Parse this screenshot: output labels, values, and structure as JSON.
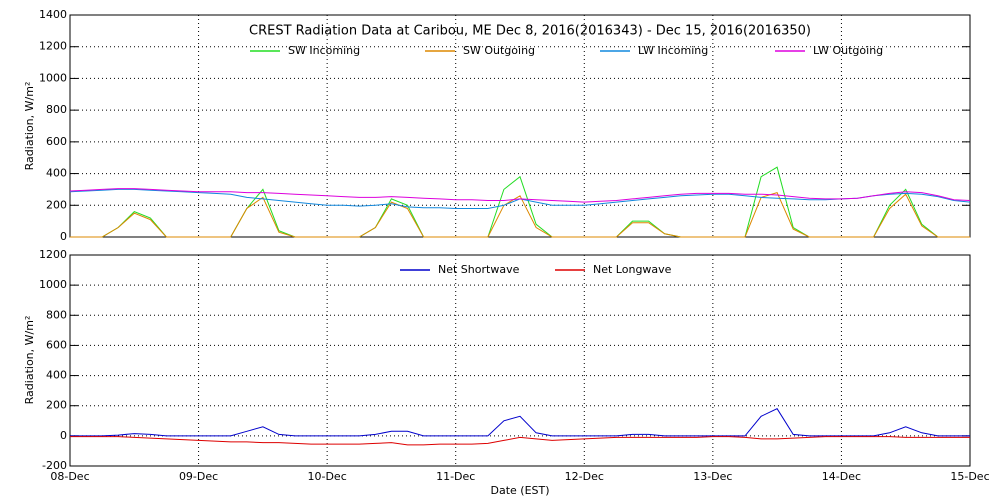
{
  "chart_data": [
    {
      "type": "line",
      "title": "CREST Radiation Data at Caribou, ME   Dec  8, 2016(2016343) - Dec 15, 2016(2016350)",
      "y_label": "Radiation, W/m²",
      "x": [
        0,
        0.125,
        0.25,
        0.375,
        0.5,
        0.625,
        0.75,
        0.875,
        1,
        1.125,
        1.25,
        1.375,
        1.5,
        1.625,
        1.75,
        1.875,
        2,
        2.125,
        2.25,
        2.375,
        2.5,
        2.625,
        2.75,
        2.875,
        3,
        3.125,
        3.25,
        3.375,
        3.5,
        3.625,
        3.75,
        3.875,
        4,
        4.125,
        4.25,
        4.375,
        4.5,
        4.625,
        4.75,
        4.875,
        5,
        5.125,
        5.25,
        5.375,
        5.5,
        5.625,
        5.75,
        5.875,
        6,
        6.125,
        6.25,
        6.375,
        6.5,
        6.625,
        6.75,
        6.875,
        7
      ],
      "xlim": [
        0,
        7
      ],
      "xticks": [
        0,
        1,
        2,
        3,
        4,
        5,
        6,
        7
      ],
      "ylim": [
        0,
        1400
      ],
      "yticks": [
        0,
        200,
        400,
        600,
        800,
        1000,
        1200,
        1400
      ],
      "grid": true,
      "series": [
        {
          "name": "SW Incoming",
          "color": "#22dd22",
          "values": [
            0,
            0,
            0,
            60,
            160,
            120,
            0,
            0,
            0,
            0,
            0,
            180,
            300,
            40,
            0,
            0,
            0,
            0,
            0,
            60,
            240,
            200,
            0,
            0,
            0,
            0,
            0,
            300,
            380,
            80,
            0,
            0,
            0,
            0,
            0,
            100,
            100,
            20,
            0,
            0,
            0,
            0,
            0,
            380,
            440,
            60,
            0,
            0,
            0,
            0,
            0,
            200,
            300,
            80,
            0,
            0,
            0
          ]
        },
        {
          "name": "SW Outgoing",
          "color": "#dd8800",
          "values": [
            0,
            0,
            0,
            60,
            150,
            110,
            0,
            0,
            0,
            0,
            0,
            180,
            250,
            30,
            0,
            0,
            0,
            0,
            0,
            60,
            220,
            180,
            0,
            0,
            0,
            0,
            0,
            200,
            260,
            60,
            0,
            0,
            0,
            0,
            0,
            90,
            90,
            20,
            0,
            0,
            0,
            0,
            0,
            250,
            280,
            50,
            0,
            0,
            0,
            0,
            0,
            180,
            270,
            70,
            0,
            0,
            0
          ]
        },
        {
          "name": "LW Incoming",
          "color": "#1188dd",
          "values": [
            285,
            290,
            295,
            300,
            300,
            295,
            290,
            285,
            280,
            275,
            270,
            250,
            240,
            230,
            220,
            210,
            200,
            200,
            195,
            200,
            210,
            190,
            185,
            185,
            180,
            180,
            180,
            200,
            240,
            220,
            200,
            200,
            200,
            210,
            220,
            230,
            240,
            250,
            260,
            265,
            270,
            270,
            260,
            250,
            245,
            240,
            235,
            235,
            240,
            245,
            260,
            270,
            275,
            270,
            255,
            230,
            220
          ]
        },
        {
          "name": "LW Outgoing",
          "color": "#dd00dd",
          "values": [
            290,
            295,
            300,
            305,
            305,
            300,
            295,
            290,
            285,
            285,
            285,
            280,
            280,
            275,
            270,
            265,
            260,
            255,
            250,
            250,
            255,
            250,
            245,
            240,
            235,
            235,
            230,
            230,
            240,
            235,
            230,
            225,
            220,
            225,
            230,
            240,
            250,
            260,
            270,
            275,
            275,
            275,
            270,
            270,
            265,
            255,
            245,
            240,
            240,
            245,
            260,
            275,
            285,
            280,
            260,
            235,
            230
          ]
        }
      ]
    },
    {
      "type": "line",
      "x_label": "Date (EST)",
      "y_label": "Radiation, W/m²",
      "x": [
        0,
        0.125,
        0.25,
        0.375,
        0.5,
        0.625,
        0.75,
        0.875,
        1,
        1.125,
        1.25,
        1.375,
        1.5,
        1.625,
        1.75,
        1.875,
        2,
        2.125,
        2.25,
        2.375,
        2.5,
        2.625,
        2.75,
        2.875,
        3,
        3.125,
        3.25,
        3.375,
        3.5,
        3.625,
        3.75,
        3.875,
        4,
        4.125,
        4.25,
        4.375,
        4.5,
        4.625,
        4.75,
        4.875,
        5,
        5.125,
        5.25,
        5.375,
        5.5,
        5.625,
        5.75,
        5.875,
        6,
        6.125,
        6.25,
        6.375,
        6.5,
        6.625,
        6.75,
        6.875,
        7
      ],
      "xlim": [
        0,
        7
      ],
      "xticks": [
        {
          "value": 0,
          "label": "08-Dec"
        },
        {
          "value": 1,
          "label": "09-Dec"
        },
        {
          "value": 2,
          "label": "10-Dec"
        },
        {
          "value": 3,
          "label": "11-Dec"
        },
        {
          "value": 4,
          "label": "12-Dec"
        },
        {
          "value": 5,
          "label": "13-Dec"
        },
        {
          "value": 6,
          "label": "14-Dec"
        },
        {
          "value": 7,
          "label": "15-Dec"
        }
      ],
      "ylim": [
        -200,
        1200
      ],
      "yticks": [
        -200,
        0,
        200,
        400,
        600,
        800,
        1000,
        1200
      ],
      "grid": true,
      "series": [
        {
          "name": "Net Shortwave",
          "color": "#0000cc",
          "values": [
            0,
            0,
            0,
            5,
            15,
            10,
            0,
            0,
            0,
            0,
            0,
            30,
            60,
            10,
            0,
            0,
            0,
            0,
            0,
            10,
            30,
            30,
            0,
            0,
            0,
            0,
            0,
            100,
            130,
            20,
            0,
            0,
            0,
            0,
            0,
            10,
            10,
            0,
            0,
            0,
            0,
            0,
            0,
            130,
            180,
            10,
            0,
            0,
            0,
            0,
            0,
            20,
            60,
            20,
            0,
            0,
            0
          ]
        },
        {
          "name": "Net Longwave",
          "color": "#dd0000",
          "values": [
            -5,
            -5,
            -5,
            -5,
            -10,
            -15,
            -20,
            -25,
            -30,
            -35,
            -40,
            -40,
            -45,
            -45,
            -50,
            -55,
            -55,
            -55,
            -55,
            -50,
            -45,
            -60,
            -60,
            -55,
            -55,
            -55,
            -50,
            -30,
            -10,
            -20,
            -30,
            -25,
            -20,
            -15,
            -10,
            -10,
            -10,
            -10,
            -10,
            -10,
            -5,
            -5,
            -10,
            -20,
            -20,
            -15,
            -10,
            -5,
            -5,
            -5,
            -5,
            -5,
            -10,
            -10,
            -10,
            -10,
            -10
          ]
        }
      ]
    }
  ]
}
